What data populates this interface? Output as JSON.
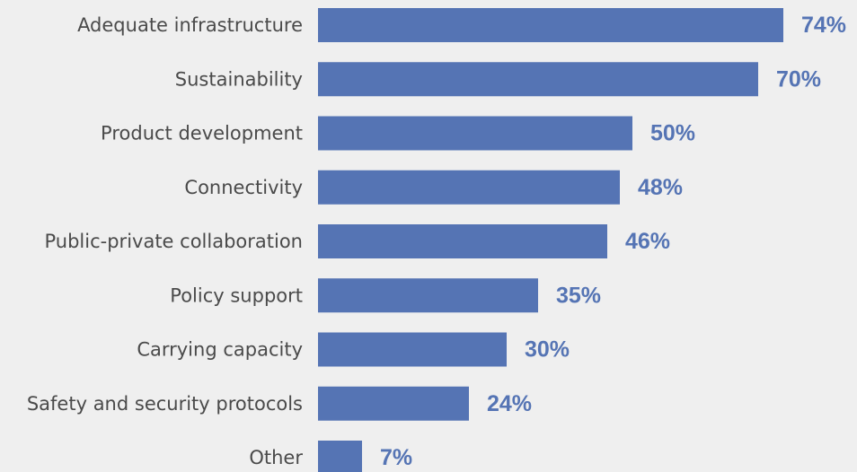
{
  "colors": {
    "background": "#efefef",
    "bar": "#5574b4",
    "value_label": "#5574b4",
    "category_label": "#4a4a4a"
  },
  "chart_data": {
    "type": "bar",
    "orientation": "horizontal",
    "title": "",
    "xlabel": "",
    "ylabel": "",
    "grid": false,
    "xlim": [
      0,
      100
    ],
    "categories": [
      "Adequate infrastructure",
      "Sustainability",
      "Product development",
      "Connectivity",
      "Public-private collaboration",
      "Policy support",
      "Carrying capacity",
      "Safety and security protocols",
      "Other"
    ],
    "values": [
      74,
      70,
      50,
      48,
      46,
      35,
      30,
      24,
      7
    ],
    "value_labels": [
      "74%",
      "70%",
      "50%",
      "48%",
      "46%",
      "35%",
      "30%",
      "24%",
      "7%"
    ]
  }
}
